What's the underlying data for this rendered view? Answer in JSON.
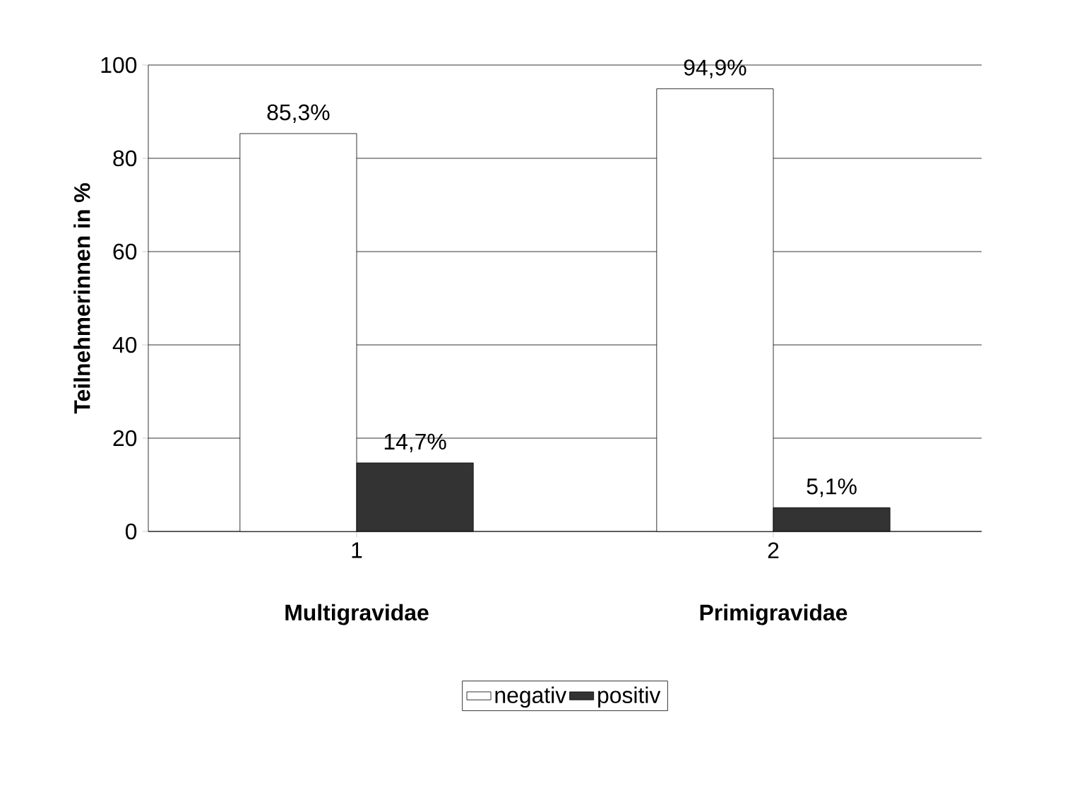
{
  "chart_data": {
    "type": "bar",
    "ylabel": "Teilnehmerinnen in %",
    "categories": [
      "1",
      "2"
    ],
    "annotations": [
      "Multigravidae",
      "Primigravidae"
    ],
    "series": [
      {
        "name": "negativ",
        "color": "#ffffff",
        "values": [
          85.3,
          94.9
        ],
        "value_labels": [
          "85,3%",
          "94,9%"
        ]
      },
      {
        "name": "positiv",
        "color": "#333333",
        "values": [
          14.7,
          5.1
        ],
        "value_labels": [
          "14,7%",
          "5,1%"
        ]
      }
    ],
    "ylim": [
      0,
      100
    ],
    "yticks": [
      0,
      20,
      40,
      60,
      80,
      100
    ],
    "grid": "y",
    "legend": "bottom"
  }
}
